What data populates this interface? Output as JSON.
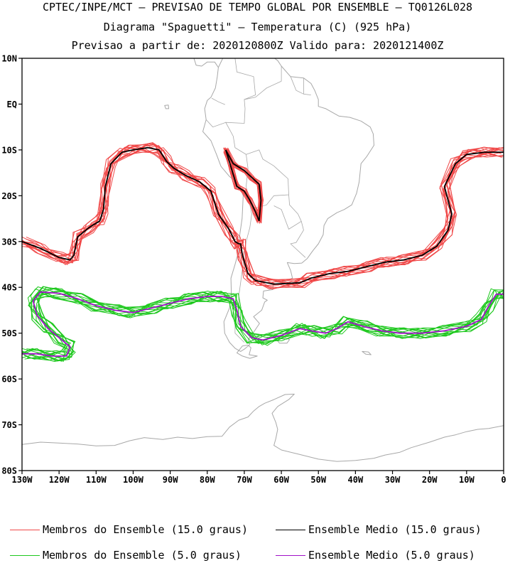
{
  "header": {
    "line1": "CPTEC/INPE/MCT – PREVISAO DE TEMPO GLOBAL POR ENSEMBLE – TQ0126L028",
    "line2": "Diagrama \"Spaguetti\" – Temperatura (C) (925 hPa)",
    "line3": "Previsao a partir de: 2020120800Z  Valido para: 2020121400Z"
  },
  "map": {
    "lat_labels": [
      "10N",
      "EQ",
      "10S",
      "20S",
      "30S",
      "40S",
      "50S",
      "60S",
      "70S",
      "80S"
    ],
    "lon_labels": [
      "130W",
      "120W",
      "110W",
      "100W",
      "90W",
      "80W",
      "70W",
      "60W",
      "50W",
      "40W",
      "30W",
      "20W",
      "10W",
      "0"
    ],
    "lat_range": [
      -80,
      10
    ],
    "lon_range": [
      -130,
      0
    ],
    "coast_color": "#a8a8a8",
    "lines": {
      "members_15": {
        "color": "#f04848",
        "count": 14,
        "path": [
          [
            -130,
            -30
          ],
          [
            -125,
            -31.5
          ],
          [
            -120,
            -33.5
          ],
          [
            -117,
            -34
          ],
          [
            -116,
            -33
          ],
          [
            -115,
            -29
          ],
          [
            -112,
            -27
          ],
          [
            -109,
            -25.5
          ],
          [
            -108,
            -23
          ],
          [
            -107.5,
            -18
          ],
          [
            -106,
            -13
          ],
          [
            -103,
            -10.5
          ],
          [
            -100,
            -10
          ],
          [
            -96,
            -9.5
          ],
          [
            -93,
            -10
          ],
          [
            -91,
            -12.5
          ],
          [
            -89,
            -14
          ],
          [
            -86,
            -15.5
          ],
          [
            -82,
            -17
          ],
          [
            -79,
            -19
          ],
          [
            -77,
            -24
          ],
          [
            -74,
            -27.5
          ],
          [
            -72.5,
            -30
          ],
          [
            -71.5,
            -30.5
          ],
          [
            -71,
            -30.5
          ],
          [
            -70.5,
            -33
          ],
          [
            -69,
            -37
          ],
          [
            -67,
            -38.5
          ],
          [
            -62,
            -39.3
          ],
          [
            -55,
            -39
          ],
          [
            -52,
            -38
          ],
          [
            -47,
            -37
          ],
          [
            -42,
            -36.5
          ],
          [
            -37,
            -35.5
          ],
          [
            -32,
            -34.5
          ],
          [
            -27,
            -34
          ],
          [
            -22,
            -33
          ],
          [
            -18,
            -31
          ],
          [
            -15,
            -27.5
          ],
          [
            -14,
            -24
          ],
          [
            -16,
            -18
          ],
          [
            -13,
            -13
          ],
          [
            -10,
            -11
          ],
          [
            -5,
            -10.5
          ],
          [
            0,
            -10.5
          ]
        ],
        "loop": [
          [
            -75,
            -10
          ],
          [
            -73,
            -13
          ],
          [
            -70,
            -14.5
          ],
          [
            -68,
            -16
          ],
          [
            -66,
            -17.5
          ],
          [
            -65.5,
            -21
          ],
          [
            -66,
            -25.5
          ],
          [
            -67,
            -23.5
          ],
          [
            -68.5,
            -21
          ],
          [
            -70,
            -19
          ],
          [
            -72,
            -18
          ],
          [
            -73.5,
            -14
          ],
          [
            -75,
            -10
          ]
        ]
      },
      "mean_15": {
        "color": "#000000"
      },
      "members_5": {
        "color": "#1ec81e",
        "count": 14,
        "path": [
          [
            -130,
            -54.5
          ],
          [
            -126,
            -54.5
          ],
          [
            -122,
            -55
          ],
          [
            -118,
            -55
          ],
          [
            -117,
            -53
          ],
          [
            -120,
            -51
          ],
          [
            -123,
            -49
          ],
          [
            -126,
            -46
          ],
          [
            -127,
            -43
          ],
          [
            -125,
            -41
          ],
          [
            -120,
            -41.3
          ],
          [
            -115,
            -42.5
          ],
          [
            -110,
            -44
          ],
          [
            -105,
            -45
          ],
          [
            -100,
            -45.5
          ],
          [
            -95,
            -44.5
          ],
          [
            -90,
            -43.5
          ],
          [
            -85,
            -42.5
          ],
          [
            -80,
            -42
          ],
          [
            -76,
            -42
          ],
          [
            -73,
            -42.5
          ],
          [
            -72,
            -45
          ],
          [
            -71,
            -48.5
          ],
          [
            -68,
            -51
          ],
          [
            -65,
            -51.5
          ],
          [
            -60,
            -50.5
          ],
          [
            -55,
            -49
          ],
          [
            -52,
            -49.5
          ],
          [
            -48,
            -50
          ],
          [
            -45,
            -49
          ],
          [
            -42,
            -47.5
          ],
          [
            -38,
            -48.5
          ],
          [
            -33,
            -49.5
          ],
          [
            -28,
            -50
          ],
          [
            -22,
            -50
          ],
          [
            -16,
            -49.5
          ],
          [
            -10,
            -48.5
          ],
          [
            -6,
            -47
          ],
          [
            -4,
            -44
          ],
          [
            -2,
            -41.5
          ],
          [
            0,
            -41.5
          ]
        ]
      },
      "mean_5": {
        "color": "#a010c8"
      }
    }
  },
  "legend": [
    {
      "label": "Membros do Ensemble (15.0 graus)",
      "color": "#f04848"
    },
    {
      "label": "Ensemble Medio (15.0 graus)",
      "color": "#000000"
    },
    {
      "label": "Membros do Ensemble (5.0 graus)",
      "color": "#1ec81e"
    },
    {
      "label": "Ensemble Medio (5.0 graus)",
      "color": "#a010c8"
    }
  ]
}
